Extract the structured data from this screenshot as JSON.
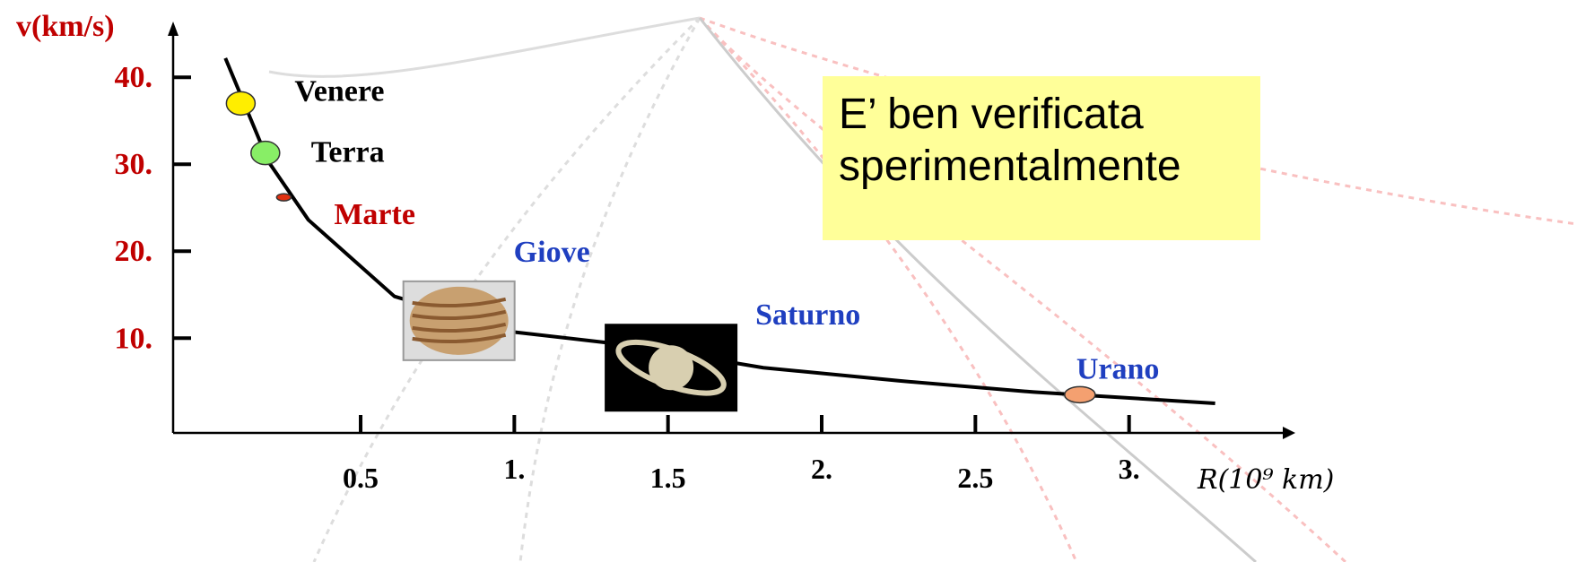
{
  "chart_data": {
    "type": "line",
    "xlabel": "R(10⁹ km)",
    "ylabel": "v(km/s)",
    "xlim": [
      -0.11,
      3.5
    ],
    "ylim": [
      -0.9,
      46
    ],
    "xticks": [
      0.5,
      {
        "value": 1,
        "label": "1."
      },
      1.5,
      {
        "value": 2,
        "label": "2."
      },
      2.5,
      {
        "value": 3,
        "label": "3."
      }
    ],
    "yticks": [
      {
        "value": 10,
        "label": "10."
      },
      {
        "value": 20,
        "label": "20."
      },
      {
        "value": 30,
        "label": "30."
      },
      {
        "value": 40,
        "label": "40."
      }
    ],
    "curve": {
      "color": "#000000",
      "x": [
        0.06,
        0.2,
        0.33,
        0.61,
        1.0,
        1.37,
        1.81,
        2.25,
        2.69,
        3.28
      ],
      "values": [
        42.2,
        30.3,
        23.6,
        14.8,
        10.7,
        9.2,
        6.6,
        5.1,
        3.8,
        2.5
      ]
    },
    "planets": [
      {
        "name": "Venere",
        "x": 0.11,
        "value": 37,
        "color": "#ffee00",
        "label_color": "#000000"
      },
      {
        "name": "Terra",
        "x": 0.19,
        "value": 31.3,
        "color": "#88ee66",
        "label_color": "#000000"
      },
      {
        "name": "Marte",
        "x": 0.25,
        "value": 26.2,
        "color": "#e03010",
        "label_color": "#c00000"
      },
      {
        "name": "Giove",
        "x": 0.82,
        "value": 12,
        "color": "#c8a070",
        "label_color": "#1f3fc0"
      },
      {
        "name": "Saturno",
        "x": 1.51,
        "value": 6.6,
        "color": "#d8cfb0",
        "label_color": "#1f3fc0"
      },
      {
        "name": "Urano",
        "x": 2.84,
        "value": 3.5,
        "color": "#f4a070",
        "label_color": "#1f3fc0"
      }
    ],
    "annotation": "E’ ben verificata sperimentalmente"
  }
}
